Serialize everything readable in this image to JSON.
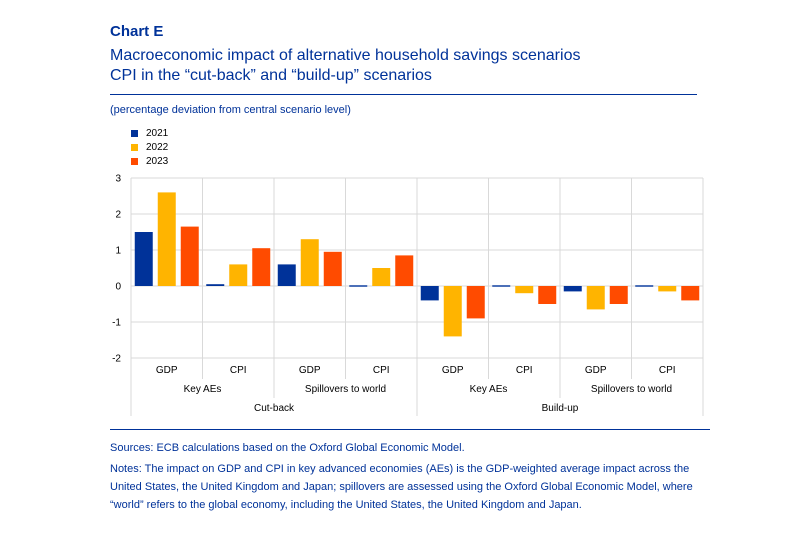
{
  "header": {
    "label": "Chart E",
    "title": "Macroeconomic impact of alternative household savings scenarios",
    "subtitle": "CPI in the “cut-back” and “build-up” scenarios"
  },
  "unit_note": "(percentage deviation from central scenario level)",
  "colors": {
    "2021": "#003299",
    "2022": "#FFB400",
    "2023": "#FF4B00",
    "rule": "#003299",
    "grid": "#d9d9d9"
  },
  "chart_data": {
    "type": "bar",
    "title": "",
    "xlabel": "",
    "ylabel": "",
    "ylim": [
      -2,
      3
    ],
    "yticks": [
      3,
      2,
      1,
      0,
      -1,
      -2
    ],
    "grid": true,
    "legend_position": "top-left",
    "categories": [
      "GDP",
      "CPI",
      "GDP",
      "CPI",
      "GDP",
      "CPI",
      "GDP",
      "CPI"
    ],
    "subgroups": [
      {
        "label": "Key AEs",
        "span": [
          0,
          1
        ]
      },
      {
        "label": "Spillovers to world",
        "span": [
          2,
          3
        ]
      },
      {
        "label": "Key AEs",
        "span": [
          4,
          5
        ]
      },
      {
        "label": "Spillovers to world",
        "span": [
          6,
          7
        ]
      }
    ],
    "groups": [
      {
        "label": "Cut-back",
        "span": [
          0,
          3
        ]
      },
      {
        "label": "Build-up",
        "span": [
          4,
          7
        ]
      }
    ],
    "series": [
      {
        "name": "2021",
        "color": "#003299",
        "values": [
          1.5,
          0.05,
          0.6,
          0.0,
          -0.4,
          0.0,
          -0.15,
          0.0
        ]
      },
      {
        "name": "2022",
        "color": "#FFB400",
        "values": [
          2.6,
          0.6,
          1.3,
          0.5,
          -1.4,
          -0.2,
          -0.65,
          -0.15
        ]
      },
      {
        "name": "2023",
        "color": "#FF4B00",
        "values": [
          1.65,
          1.05,
          0.95,
          0.85,
          -0.9,
          -0.5,
          -0.5,
          -0.4
        ]
      }
    ]
  },
  "footer": {
    "sources": "Sources: ECB calculations based on the Oxford Global Economic Model.",
    "notes": "Notes: The impact on GDP and CPI in key advanced economies (AEs) is the GDP-weighted average impact across the United States, the United Kingdom and Japan; spillovers are assessed using the Oxford Global Economic Model, where “world” refers to the global economy, including the United States, the United Kingdom and Japan."
  }
}
